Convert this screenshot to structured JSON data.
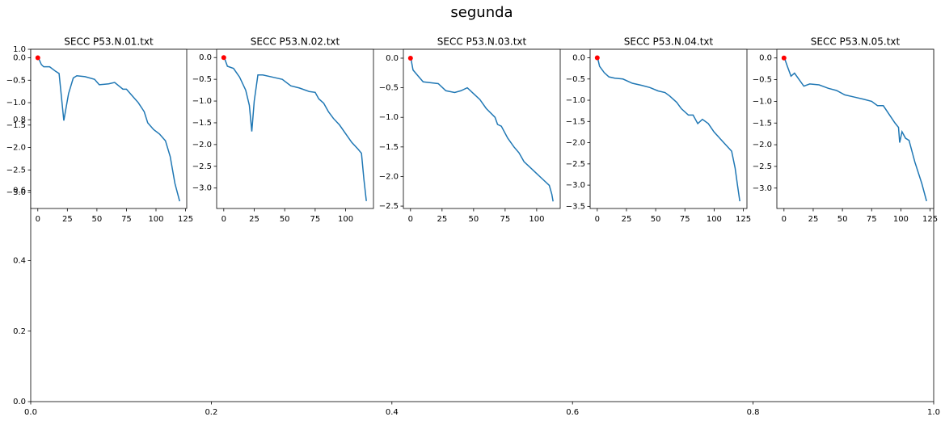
{
  "title": "segunda",
  "chart_data": [
    {
      "type": "axes",
      "xlim": [
        0,
        1
      ],
      "ylim": [
        0,
        1
      ],
      "xticks": [
        {
          "value": 0,
          "label": "0.0"
        },
        {
          "value": 0.2,
          "label": "0.2"
        },
        {
          "value": 0.4,
          "label": "0.4"
        },
        {
          "value": 0.6,
          "label": "0.6"
        },
        {
          "value": 0.8,
          "label": "0.8"
        },
        {
          "value": 1,
          "label": "1.0"
        }
      ],
      "yticks": [
        {
          "value": 0,
          "label": "0.0"
        },
        {
          "value": 0.2,
          "label": "0.2"
        },
        {
          "value": 0.4,
          "label": "0.4"
        },
        {
          "value": 0.6,
          "label": "0.6"
        },
        {
          "value": 0.8,
          "label": "0.8"
        },
        {
          "value": 1,
          "label": "1.0"
        }
      ]
    },
    {
      "type": "line",
      "title": "SECC P53.N.01.txt",
      "xlim": [
        -6,
        126
      ],
      "ylim": [
        -3.36,
        0.19
      ],
      "xticks": [
        0,
        25,
        50,
        75,
        100,
        125
      ],
      "yticks": [
        {
          "value": 0,
          "label": "0.0"
        },
        {
          "value": -0.5,
          "label": "−0.5"
        },
        {
          "value": -1,
          "label": "−1.0"
        },
        {
          "value": -1.5,
          "label": "−1.5"
        },
        {
          "value": -2,
          "label": "−2.0"
        },
        {
          "value": -2.5,
          "label": "−2.5"
        },
        {
          "value": -3,
          "label": "−3.0"
        }
      ],
      "series": [
        {
          "color": "#1f77b4",
          "x": [
            0,
            3,
            5,
            10,
            15,
            18,
            22,
            26,
            30,
            33,
            40,
            48,
            52,
            60,
            65,
            72,
            75,
            80,
            85,
            90,
            93,
            98,
            103,
            108,
            112,
            116,
            120
          ],
          "values": [
            0.03,
            -0.15,
            -0.2,
            -0.2,
            -0.3,
            -0.35,
            -1.4,
            -0.8,
            -0.45,
            -0.4,
            -0.42,
            -0.48,
            -0.6,
            -0.58,
            -0.55,
            -0.7,
            -0.7,
            -0.85,
            -1.0,
            -1.2,
            -1.45,
            -1.6,
            -1.7,
            -1.85,
            -2.2,
            -2.8,
            -3.2
          ]
        },
        {
          "color": "#ff0000",
          "marker": true,
          "x": [
            0
          ],
          "values": [
            0
          ]
        }
      ]
    },
    {
      "type": "line",
      "title": "SECC P53.N.02.txt",
      "xlim": [
        -5.85,
        122.85
      ],
      "ylim": [
        -3.47,
        0.19
      ],
      "xticks": [
        0,
        25,
        50,
        75,
        100
      ],
      "yticks": [
        {
          "value": 0,
          "label": "0.0"
        },
        {
          "value": -0.5,
          "label": "−0.5"
        },
        {
          "value": -1,
          "label": "−1.0"
        },
        {
          "value": -1.5,
          "label": "−1.5"
        },
        {
          "value": -2,
          "label": "−2.0"
        },
        {
          "value": -2.5,
          "label": "−2.5"
        },
        {
          "value": -3,
          "label": "−3.0"
        }
      ],
      "series": [
        {
          "color": "#1f77b4",
          "x": [
            0,
            3,
            8,
            13,
            18,
            21,
            23,
            25,
            28,
            32,
            40,
            48,
            55,
            62,
            70,
            75,
            78,
            82,
            86,
            90,
            95,
            100,
            105,
            110,
            113,
            115,
            117
          ],
          "values": [
            0.03,
            -0.2,
            -0.25,
            -0.45,
            -0.75,
            -1.1,
            -1.7,
            -1.0,
            -0.4,
            -0.4,
            -0.45,
            -0.5,
            -0.65,
            -0.7,
            -0.78,
            -0.8,
            -0.95,
            -1.05,
            -1.25,
            -1.4,
            -1.55,
            -1.75,
            -1.95,
            -2.1,
            -2.2,
            -2.8,
            -3.3
          ]
        },
        {
          "color": "#ff0000",
          "marker": true,
          "x": [
            0
          ],
          "values": [
            0
          ]
        }
      ]
    },
    {
      "type": "line",
      "title": "SECC P53.N.03.txt",
      "xlim": [
        -5.65,
        118.65
      ],
      "ylim": [
        -2.54,
        0.15
      ],
      "xticks": [
        0,
        25,
        50,
        75,
        100
      ],
      "yticks": [
        {
          "value": 0,
          "label": "0.0"
        },
        {
          "value": -0.5,
          "label": "−0.5"
        },
        {
          "value": -1,
          "label": "−1.0"
        },
        {
          "value": -1.5,
          "label": "−1.5"
        },
        {
          "value": -2,
          "label": "−2.0"
        },
        {
          "value": -2.5,
          "label": "−2.5"
        }
      ],
      "series": [
        {
          "color": "#1f77b4",
          "x": [
            0,
            2,
            6,
            10,
            18,
            22,
            28,
            35,
            40,
            45,
            50,
            55,
            60,
            67,
            69,
            72,
            77,
            82,
            86,
            90,
            95,
            100,
            105,
            110,
            112,
            113
          ],
          "values": [
            0.03,
            -0.2,
            -0.3,
            -0.4,
            -0.42,
            -0.43,
            -0.55,
            -0.58,
            -0.55,
            -0.5,
            -0.6,
            -0.7,
            -0.85,
            -1.0,
            -1.12,
            -1.15,
            -1.35,
            -1.5,
            -1.6,
            -1.75,
            -1.85,
            -1.95,
            -2.05,
            -2.15,
            -2.3,
            -2.42
          ]
        },
        {
          "color": "#ff0000",
          "marker": true,
          "x": [
            0
          ],
          "values": [
            0
          ]
        }
      ]
    },
    {
      "type": "line",
      "title": "SECC P53.N.04.txt",
      "xlim": [
        -6.1,
        128.1
      ],
      "ylim": [
        -3.55,
        0.2
      ],
      "xticks": [
        0,
        25,
        50,
        75,
        100,
        125
      ],
      "yticks": [
        {
          "value": 0,
          "label": "0.0"
        },
        {
          "value": -0.5,
          "label": "−0.5"
        },
        {
          "value": -1,
          "label": "−1.0"
        },
        {
          "value": -1.5,
          "label": "−1.5"
        },
        {
          "value": -2,
          "label": "−2.0"
        },
        {
          "value": -2.5,
          "label": "−2.5"
        },
        {
          "value": -3,
          "label": "−3.0"
        },
        {
          "value": -3.5,
          "label": "−3.5"
        }
      ],
      "series": [
        {
          "color": "#1f77b4",
          "x": [
            0,
            2,
            6,
            10,
            15,
            22,
            30,
            38,
            45,
            52,
            58,
            62,
            68,
            72,
            78,
            82,
            86,
            90,
            95,
            100,
            105,
            110,
            115,
            118,
            120,
            122
          ],
          "values": [
            0.03,
            -0.2,
            -0.35,
            -0.45,
            -0.48,
            -0.5,
            -0.6,
            -0.65,
            -0.7,
            -0.78,
            -0.82,
            -0.9,
            -1.05,
            -1.2,
            -1.35,
            -1.35,
            -1.55,
            -1.45,
            -1.55,
            -1.75,
            -1.9,
            -2.05,
            -2.2,
            -2.6,
            -3.0,
            -3.38
          ]
        },
        {
          "color": "#ff0000",
          "marker": true,
          "x": [
            0
          ],
          "values": [
            0
          ]
        }
      ]
    },
    {
      "type": "line",
      "title": "SECC P53.N.05.txt",
      "xlim": [
        -6.1,
        128.1
      ],
      "ylim": [
        -3.47,
        0.2
      ],
      "xticks": [
        0,
        25,
        50,
        75,
        100,
        125
      ],
      "yticks": [
        {
          "value": 0,
          "label": "0.0"
        },
        {
          "value": -0.5,
          "label": "−0.5"
        },
        {
          "value": -1,
          "label": "−1.0"
        },
        {
          "value": -1.5,
          "label": "−1.5"
        },
        {
          "value": -2,
          "label": "−2.0"
        },
        {
          "value": -2.5,
          "label": "−2.5"
        },
        {
          "value": -3,
          "label": "−3.0"
        }
      ],
      "series": [
        {
          "color": "#1f77b4",
          "x": [
            0,
            3,
            6,
            9,
            13,
            17,
            22,
            30,
            38,
            45,
            52,
            60,
            68,
            75,
            80,
            85,
            90,
            95,
            98,
            99,
            101,
            104,
            107,
            112,
            118,
            122
          ],
          "values": [
            0.03,
            -0.2,
            -0.42,
            -0.35,
            -0.5,
            -0.65,
            -0.6,
            -0.62,
            -0.7,
            -0.75,
            -0.85,
            -0.9,
            -0.95,
            -1.0,
            -1.1,
            -1.1,
            -1.3,
            -1.5,
            -1.6,
            -1.95,
            -1.7,
            -1.85,
            -1.9,
            -2.4,
            -2.9,
            -3.3
          ]
        },
        {
          "color": "#ff0000",
          "marker": true,
          "x": [
            0
          ],
          "values": [
            0
          ]
        }
      ]
    }
  ]
}
